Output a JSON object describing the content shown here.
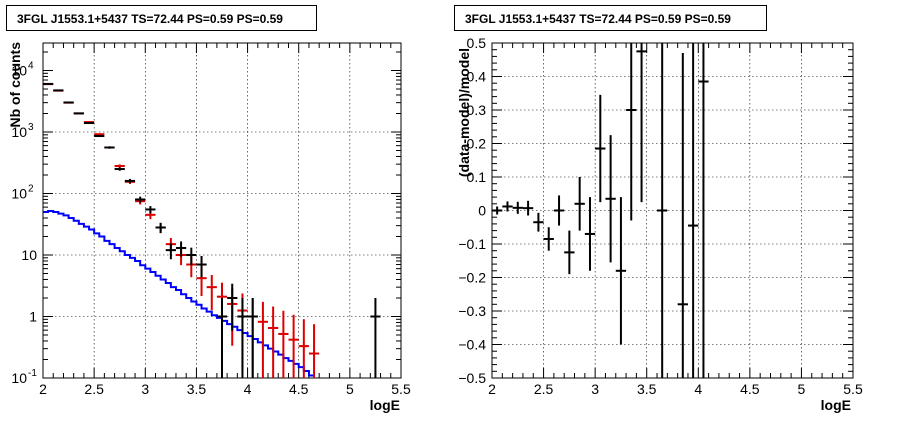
{
  "chart_data": [
    {
      "type": "line",
      "title": "3FGL J1553.1+5437 TS=72.44 PS=0.59 PS=0.59",
      "xlabel": "logE",
      "ylabel": "Nb of counts",
      "xlim": [
        2,
        5.5
      ],
      "ylim": [
        0.1,
        28000
      ],
      "yscale": "log",
      "grid": true,
      "x_ticks": [
        {
          "v": 2,
          "label": "2"
        },
        {
          "v": 2.5,
          "label": "2.5"
        },
        {
          "v": 3,
          "label": "3"
        },
        {
          "v": 3.5,
          "label": "3.5"
        },
        {
          "v": 4,
          "label": "4"
        },
        {
          "v": 4.5,
          "label": "4.5"
        },
        {
          "v": 5,
          "label": "5"
        },
        {
          "v": 5.5,
          "label": "5.5"
        }
      ],
      "y_ticks": [
        {
          "v": 0.1,
          "label": "10",
          "sup": "-1"
        },
        {
          "v": 1,
          "label": "1",
          "sup": ""
        },
        {
          "v": 10,
          "label": "10",
          "sup": ""
        },
        {
          "v": 100,
          "label": "10",
          "sup": "2"
        },
        {
          "v": 1000,
          "label": "10",
          "sup": "3"
        },
        {
          "v": 10000,
          "label": "10",
          "sup": "4"
        }
      ],
      "bin_edges": [
        2.0,
        2.1,
        2.2,
        2.3,
        2.4,
        2.5,
        2.6,
        2.7,
        2.8,
        2.9,
        3.0,
        3.1,
        3.2,
        3.3,
        3.4,
        3.5,
        3.6,
        3.7,
        3.8,
        3.9,
        4.0,
        4.1,
        4.2,
        4.3,
        4.4,
        4.5,
        4.6,
        4.7
      ],
      "series": [
        {
          "role": "background-model",
          "color": "#0000ff",
          "bin_width": 0.05,
          "start": 2.0,
          "values": [
            50,
            52,
            50,
            47,
            44,
            40,
            36,
            32,
            29,
            26,
            22.5,
            20,
            17,
            15,
            13,
            11.5,
            10,
            9,
            8,
            6.8,
            6,
            5.3,
            4.6,
            4,
            3.5,
            3,
            2.7,
            2.3,
            2,
            1.75,
            1.55,
            1.35,
            1.2,
            1.05,
            0.95,
            0.85,
            0.75,
            0.68,
            0.6,
            0.54,
            0.48,
            0.43,
            0.38,
            0.34,
            0.3,
            0.27,
            0.24,
            0.21,
            0.19,
            0.17,
            0.15,
            0.13,
            0.11
          ]
        },
        {
          "role": "total-model",
          "color": "#dd0000",
          "points": [
            {
              "x": 2.05,
              "y": 6000
            },
            {
              "x": 2.15,
              "y": 4700
            },
            {
              "x": 2.25,
              "y": 3000
            },
            {
              "x": 2.35,
              "y": 2000
            },
            {
              "x": 2.45,
              "y": 1450
            },
            {
              "x": 2.55,
              "y": 920
            },
            {
              "x": 2.65,
              "y": 560
            },
            {
              "x": 2.75,
              "y": 280
            },
            {
              "x": 2.85,
              "y": 155
            },
            {
              "x": 2.95,
              "y": 75
            },
            {
              "x": 3.05,
              "y": 45
            },
            {
              "x": 3.15,
              "y": 28
            },
            {
              "x": 3.25,
              "y": 15
            },
            {
              "x": 3.35,
              "y": 10
            },
            {
              "x": 3.45,
              "y": 7
            },
            {
              "x": 3.55,
              "y": 4.2
            },
            {
              "x": 3.65,
              "y": 3.0
            },
            {
              "x": 3.75,
              "y": 2.1
            },
            {
              "x": 3.85,
              "y": 1.6
            },
            {
              "x": 3.95,
              "y": 1.25
            },
            {
              "x": 4.05,
              "y": 1.0
            },
            {
              "x": 4.15,
              "y": 0.82
            },
            {
              "x": 4.25,
              "y": 0.65
            },
            {
              "x": 4.35,
              "y": 0.52
            },
            {
              "x": 4.45,
              "y": 0.42
            },
            {
              "x": 4.55,
              "y": 0.33
            },
            {
              "x": 4.65,
              "y": 0.25
            }
          ]
        },
        {
          "role": "data",
          "color": "#000000",
          "points": [
            {
              "x": 2.05,
              "y": 6050
            },
            {
              "x": 2.15,
              "y": 4750
            },
            {
              "x": 2.25,
              "y": 3020
            },
            {
              "x": 2.35,
              "y": 2010
            },
            {
              "x": 2.45,
              "y": 1400
            },
            {
              "x": 2.55,
              "y": 860
            },
            {
              "x": 2.65,
              "y": 560
            },
            {
              "x": 2.75,
              "y": 250
            },
            {
              "x": 2.85,
              "y": 160
            },
            {
              "x": 2.95,
              "y": 80
            },
            {
              "x": 3.05,
              "y": 55
            },
            {
              "x": 3.15,
              "y": 28
            },
            {
              "x": 3.25,
              "y": 12
            },
            {
              "x": 3.35,
              "y": 13
            },
            {
              "x": 3.45,
              "y": 10
            },
            {
              "x": 3.55,
              "y": 7
            },
            {
              "x": 3.75,
              "y": 1
            },
            {
              "x": 3.85,
              "y": 2
            },
            {
              "x": 3.95,
              "y": 1
            },
            {
              "x": 4.05,
              "y": 1
            },
            {
              "x": 5.25,
              "y": 1
            }
          ]
        }
      ]
    },
    {
      "type": "scatter",
      "title": "3FGL J1553.1+5437 TS=72.44 PS=0.59 PS=0.59",
      "xlabel": "logE",
      "ylabel": "(data-model)/model",
      "xlim": [
        2,
        5.5
      ],
      "ylim": [
        -0.5,
        0.5
      ],
      "grid": true,
      "x_ticks": [
        {
          "v": 2,
          "label": "2"
        },
        {
          "v": 2.5,
          "label": "2.5"
        },
        {
          "v": 3,
          "label": "3"
        },
        {
          "v": 3.5,
          "label": "3.5"
        },
        {
          "v": 4,
          "label": "4"
        },
        {
          "v": 4.5,
          "label": "4.5"
        },
        {
          "v": 5,
          "label": "5"
        },
        {
          "v": 5.5,
          "label": "5.5"
        }
      ],
      "y_ticks": [
        {
          "v": -0.5,
          "label": "−0.5"
        },
        {
          "v": -0.4,
          "label": "−0.4"
        },
        {
          "v": -0.3,
          "label": "−0.3"
        },
        {
          "v": -0.2,
          "label": "−0.2"
        },
        {
          "v": -0.1,
          "label": "−0.1"
        },
        {
          "v": 0,
          "label": "0"
        },
        {
          "v": 0.1,
          "label": "0.1"
        },
        {
          "v": 0.2,
          "label": "0.2"
        },
        {
          "v": 0.3,
          "label": "0.3"
        },
        {
          "v": 0.4,
          "label": "0.4"
        },
        {
          "v": 0.5,
          "label": "0.5"
        }
      ],
      "series": [
        {
          "role": "residuals",
          "color": "#000000",
          "points": [
            {
              "x": 2.05,
              "y": 0.0,
              "err": 0.012
            },
            {
              "x": 2.15,
              "y": 0.012,
              "err": 0.015
            },
            {
              "x": 2.25,
              "y": 0.008,
              "err": 0.018
            },
            {
              "x": 2.35,
              "y": 0.007,
              "err": 0.022
            },
            {
              "x": 2.45,
              "y": -0.035,
              "err": 0.028
            },
            {
              "x": 2.55,
              "y": -0.085,
              "err": 0.035
            },
            {
              "x": 2.65,
              "y": 0.0,
              "err": 0.045
            },
            {
              "x": 2.75,
              "y": -0.125,
              "err": 0.065
            },
            {
              "x": 2.85,
              "y": 0.02,
              "err": 0.08
            },
            {
              "x": 2.95,
              "y": -0.07,
              "err": 0.11
            },
            {
              "x": 3.05,
              "y": 0.185,
              "err": 0.16
            },
            {
              "x": 3.15,
              "y": 0.035,
              "err": 0.19
            },
            {
              "x": 3.25,
              "y": -0.18,
              "err": 0.22
            },
            {
              "x": 3.35,
              "y": 0.3,
              "err": 0.33
            },
            {
              "x": 3.45,
              "y": 0.475,
              "err": 0.45
            },
            {
              "x": 3.65,
              "y": 0.0,
              "err": 0.7
            },
            {
              "x": 3.85,
              "y": -0.28,
              "err": 0.75
            },
            {
              "x": 3.95,
              "y": -0.045,
              "err": 0.8
            },
            {
              "x": 4.05,
              "y": 0.385,
              "err": 0.9
            }
          ]
        }
      ]
    }
  ]
}
